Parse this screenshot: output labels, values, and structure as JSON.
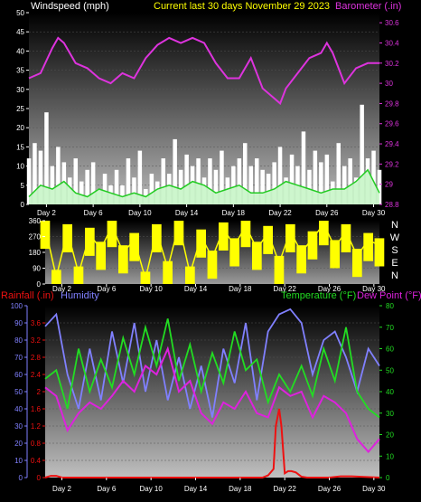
{
  "header": {
    "left": "Windspeed (mph)",
    "center": "Current last 30 days November 29 2023",
    "right": "Barometer (.in)"
  },
  "lower_header": {
    "rainfall": "Rainfall (.in)",
    "humidity": "Humidity",
    "temperature": "Temperature (°F)",
    "dewpoint": "Dew Point (°F)"
  },
  "colors": {
    "windspeed": "#ffffff",
    "gust": "#22cc22",
    "barometer": "#dd33dd",
    "direction": "#ffff00",
    "rainfall": "#ee1111",
    "humidity": "#8080ff",
    "temperature": "#22dd22",
    "dewpoint": "#dd22dd",
    "header_title": "#ffff00"
  },
  "chart_data": [
    {
      "type": "line",
      "name": "wind-barometer",
      "x_ticks": [
        "Day 2",
        "Day 6",
        "Day 10",
        "Day 14",
        "Day 18",
        "Day 22",
        "Day 26",
        "Day 30"
      ],
      "x_tick_days": [
        2,
        6,
        10,
        14,
        18,
        22,
        26,
        30
      ],
      "xlim": [
        0.5,
        30.5
      ],
      "left_axis": {
        "label": "Windspeed (mph)",
        "ylim": [
          0,
          50
        ],
        "ticks": [
          "0",
          "5",
          "10",
          "15",
          "20",
          "25",
          "30",
          "35",
          "40",
          "45",
          "50"
        ]
      },
      "right_axis": {
        "label": "Barometer (.in)",
        "ylim": [
          28.8,
          30.7
        ],
        "ticks": [
          "28.8",
          "29",
          "29.2",
          "29.4",
          "29.6",
          "29.8",
          "30",
          "30.2",
          "30.4",
          "30.6"
        ]
      },
      "series": [
        {
          "name": "Barometer",
          "x": [
            0.5,
            1.5,
            2.5,
            3,
            3.5,
            4.5,
            5.5,
            6.5,
            7.5,
            8.5,
            9.5,
            10.5,
            11.5,
            12.5,
            13.5,
            14.5,
            15.5,
            16.5,
            17.5,
            18.5,
            19.5,
            20.5,
            21.5,
            22,
            22.5,
            23.5,
            24.5,
            25.5,
            26,
            26.5,
            27.5,
            28.5,
            29.5,
            30.5
          ],
          "values": [
            30.05,
            30.1,
            30.35,
            30.45,
            30.4,
            30.2,
            30.15,
            30.05,
            30.0,
            30.1,
            30.05,
            30.25,
            30.38,
            30.45,
            30.4,
            30.45,
            30.4,
            30.2,
            30.05,
            30.05,
            30.25,
            29.95,
            29.85,
            29.8,
            29.95,
            30.1,
            30.25,
            30.3,
            30.4,
            30.3,
            30.0,
            30.15,
            30.2,
            30.2
          ]
        },
        {
          "name": "Windspeed",
          "x": [
            0.5,
            1,
            1.5,
            2,
            2.5,
            3,
            3.5,
            4,
            4.5,
            5,
            5.5,
            6,
            6.5,
            7,
            7.5,
            8,
            8.5,
            9,
            9.5,
            10,
            10.5,
            11,
            11.5,
            12,
            12.5,
            13,
            13.5,
            14,
            14.5,
            15,
            15.5,
            16,
            16.5,
            17,
            17.5,
            18,
            18.5,
            19,
            19.5,
            20,
            20.5,
            21,
            21.5,
            22,
            22.5,
            23,
            23.5,
            24,
            24.5,
            25,
            25.5,
            26,
            26.5,
            27,
            27.5,
            28,
            28.5,
            29,
            29.5,
            30,
            30.5
          ],
          "values": [
            12,
            16,
            14,
            24,
            10,
            15,
            11,
            7,
            12,
            6,
            9,
            11,
            4,
            8,
            5,
            9,
            5,
            12,
            7,
            14,
            4,
            8,
            6,
            12,
            8,
            17,
            9,
            13,
            10,
            12,
            7,
            12,
            9,
            14,
            7,
            10,
            12,
            16,
            10,
            12,
            9,
            8,
            11,
            15,
            7,
            13,
            10,
            19,
            9,
            14,
            11,
            13,
            6,
            16,
            10,
            12,
            7,
            26,
            12,
            14,
            9
          ]
        },
        {
          "name": "Gust",
          "x": [
            0.5,
            1.5,
            2.5,
            3.5,
            4.5,
            5.5,
            6.5,
            7.5,
            8.5,
            9.5,
            10.5,
            11.5,
            12.5,
            13.5,
            14.5,
            15.5,
            16.5,
            17.5,
            18.5,
            19.5,
            20.5,
            21.5,
            22.5,
            23.5,
            24.5,
            25.5,
            26.5,
            27.5,
            28.5,
            29.5,
            30.5
          ],
          "values": [
            2,
            5,
            4,
            6,
            3,
            2,
            4,
            3,
            2,
            3,
            2,
            4,
            5,
            4,
            6,
            5,
            3,
            4,
            5,
            3,
            3,
            4,
            6,
            5,
            4,
            3,
            4,
            4,
            6,
            9,
            3
          ]
        }
      ]
    },
    {
      "type": "line",
      "name": "wind-direction",
      "x_ticks": [
        "Day 2",
        "Day 6",
        "Day 10",
        "Day 14",
        "Day 18",
        "Day 22",
        "Day 26",
        "Day 30"
      ],
      "x_tick_days": [
        2,
        6,
        10,
        14,
        18,
        22,
        26,
        30
      ],
      "xlim": [
        0.5,
        30.5
      ],
      "left_axis": {
        "label": "",
        "ylim": [
          0,
          360
        ],
        "ticks": [
          "0",
          "90",
          "180",
          "270",
          "360"
        ]
      },
      "right_labels": [
        "N",
        "W",
        "S",
        "E",
        "N"
      ],
      "series": [
        {
          "name": "Wind direction",
          "x": [
            0.5,
            1.5,
            2.5,
            3.5,
            4.5,
            5.5,
            6.5,
            7.5,
            8.5,
            9.5,
            10.5,
            11.5,
            12.5,
            13.5,
            14.5,
            15.5,
            16.5,
            17.5,
            18.5,
            19.5,
            20.5,
            21.5,
            22.5,
            23.5,
            24.5,
            25.5,
            26.5,
            27.5,
            28.5,
            29.5,
            30.5
          ],
          "values": [
            320,
            40,
            300,
            60,
            280,
            200,
            330,
            180,
            250,
            30,
            300,
            90,
            340,
            60,
            270,
            150,
            310,
            220,
            330,
            200,
            290,
            120,
            300,
            180,
            260,
            340,
            210,
            300,
            160,
            250,
            220
          ]
        }
      ]
    },
    {
      "type": "line",
      "name": "rain-humidity-temperature",
      "x_ticks": [
        "Day 2",
        "Day 6",
        "Day 10",
        "Day 14",
        "Day 18",
        "Day 22",
        "Day 26",
        "Day 30"
      ],
      "x_tick_days": [
        2,
        6,
        10,
        14,
        18,
        22,
        26,
        30
      ],
      "xlim": [
        0.5,
        30.5
      ],
      "axis_humidity": {
        "label": "Humidity",
        "ylim": [
          0,
          100
        ],
        "ticks": [
          "0",
          "10",
          "20",
          "30",
          "40",
          "50",
          "60",
          "70",
          "80",
          "90",
          "100"
        ]
      },
      "axis_rainfall": {
        "label": "Rainfall (.in)",
        "ylim": [
          0,
          4.0
        ],
        "ticks": [
          "0",
          "0.4",
          "0.8",
          "1.2",
          "1.6",
          "2",
          "2.4",
          "2.8",
          "3.2",
          "3.6"
        ]
      },
      "axis_temperature": {
        "label": "Temperature (°F)",
        "ylim": [
          0,
          80
        ],
        "ticks": [
          "0",
          "10",
          "20",
          "30",
          "40",
          "50",
          "60",
          "70",
          "80"
        ]
      },
      "series": [
        {
          "name": "Humidity",
          "x": [
            0.5,
            1.5,
            2.5,
            3.5,
            4.5,
            5.5,
            6.5,
            7.5,
            8.5,
            9.5,
            10.5,
            11.5,
            12.5,
            13.5,
            14.5,
            15.5,
            16.5,
            17.5,
            18.5,
            19.5,
            20.5,
            21.5,
            22.5,
            23.5,
            24.5,
            25.5,
            26.5,
            27.5,
            28.5,
            29.5,
            30.5
          ],
          "values": [
            88,
            95,
            60,
            40,
            75,
            45,
            85,
            55,
            90,
            50,
            80,
            45,
            70,
            40,
            65,
            35,
            75,
            55,
            90,
            45,
            85,
            95,
            98,
            90,
            60,
            80,
            85,
            70,
            50,
            75,
            65
          ]
        },
        {
          "name": "Temperature",
          "x": [
            0.5,
            1.5,
            2.5,
            3.5,
            4.5,
            5.5,
            6.5,
            7.5,
            8.5,
            9.5,
            10.5,
            11.5,
            12.5,
            13.5,
            14.5,
            15.5,
            16.5,
            17.5,
            18.5,
            19.5,
            20.5,
            21.5,
            22.5,
            23.5,
            24.5,
            25.5,
            26.5,
            27.5,
            28.5,
            29.5,
            30.5
          ],
          "values": [
            46,
            50,
            32,
            60,
            40,
            55,
            42,
            65,
            48,
            70,
            52,
            74,
            45,
            62,
            40,
            58,
            44,
            68,
            50,
            55,
            35,
            48,
            40,
            52,
            38,
            60,
            45,
            70,
            40,
            32,
            28
          ]
        },
        {
          "name": "Dew Point",
          "x": [
            0.5,
            1.5,
            2.5,
            3.5,
            4.5,
            5.5,
            6.5,
            7.5,
            8.5,
            9.5,
            10.5,
            11.5,
            12.5,
            13.5,
            14.5,
            15.5,
            16.5,
            17.5,
            18.5,
            19.5,
            20.5,
            21.5,
            22.5,
            23.5,
            24.5,
            25.5,
            26.5,
            27.5,
            28.5,
            29.5,
            30.5
          ],
          "values": [
            42,
            38,
            22,
            30,
            35,
            32,
            38,
            45,
            40,
            52,
            48,
            60,
            40,
            45,
            30,
            25,
            35,
            32,
            40,
            30,
            28,
            42,
            38,
            40,
            28,
            38,
            35,
            30,
            18,
            12,
            18
          ]
        },
        {
          "name": "Rainfall",
          "x": [
            0.5,
            1,
            1.5,
            2,
            19.5,
            20,
            20.5,
            21,
            21.2,
            21.5,
            21.7,
            22,
            22.3,
            22.6,
            23,
            23.5,
            24,
            26,
            27,
            28,
            30.5
          ],
          "values": [
            0,
            0.04,
            0.04,
            0,
            0,
            0,
            0.05,
            0.2,
            1.2,
            1.6,
            1.2,
            0.1,
            0.15,
            0.15,
            0.12,
            0.02,
            0,
            0,
            0.03,
            0.03,
            0
          ]
        }
      ]
    }
  ]
}
